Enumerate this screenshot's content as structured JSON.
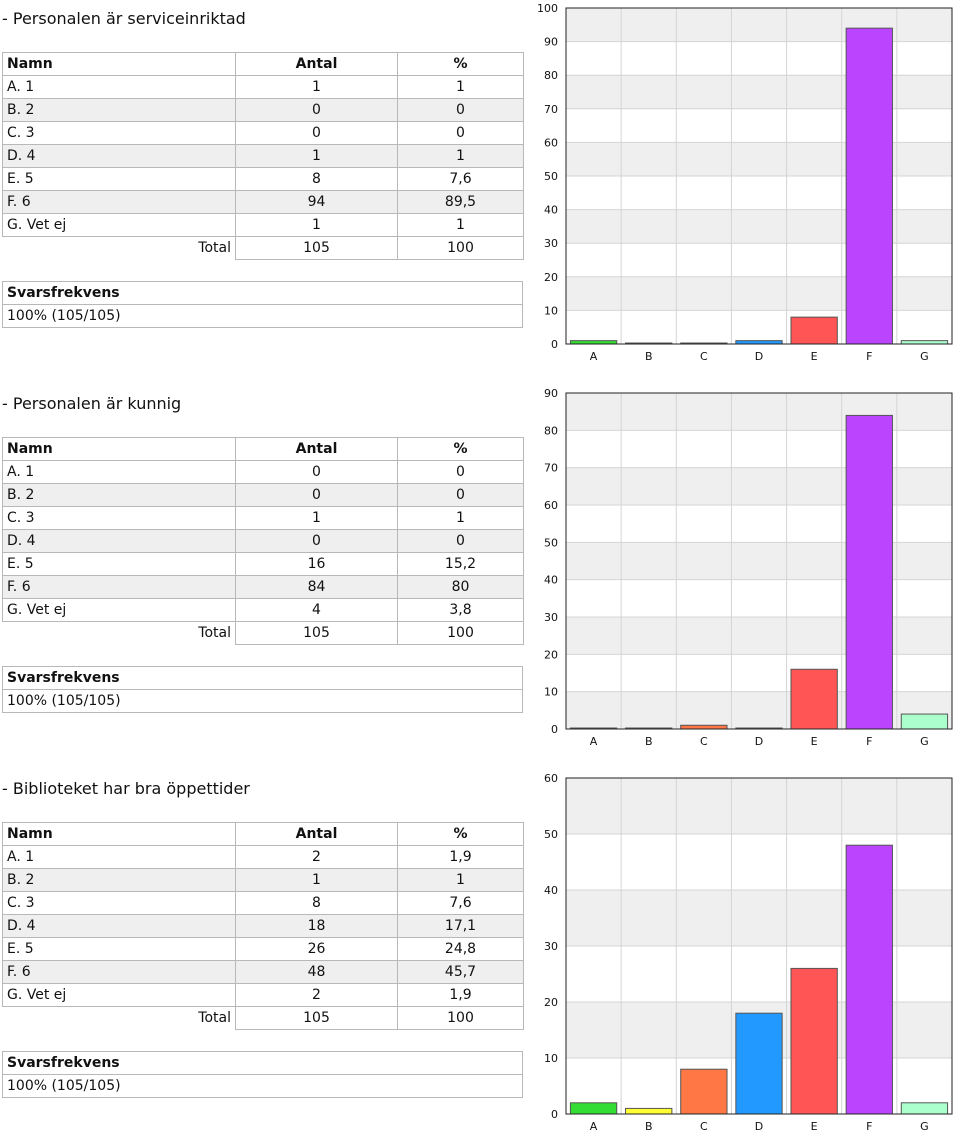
{
  "labels": {
    "col_name": "Namn",
    "col_count": "Antal",
    "col_pct": "%",
    "total": "Total",
    "response_rate": "Svarsfrekvens"
  },
  "sections": [
    {
      "title": "- Personalen är serviceinriktad",
      "rows": [
        {
          "name": "A. 1",
          "count": "1",
          "pct": "1"
        },
        {
          "name": "B. 2",
          "count": "0",
          "pct": "0"
        },
        {
          "name": "C. 3",
          "count": "0",
          "pct": "0"
        },
        {
          "name": "D. 4",
          "count": "1",
          "pct": "1"
        },
        {
          "name": "E. 5",
          "count": "8",
          "pct": "7,6"
        },
        {
          "name": "F. 6",
          "count": "94",
          "pct": "89,5"
        },
        {
          "name": "G. Vet ej",
          "count": "1",
          "pct": "1"
        }
      ],
      "total": {
        "count": "105",
        "pct": "100"
      },
      "response_rate": "100% (105/105)"
    },
    {
      "title": "- Personalen är kunnig",
      "rows": [
        {
          "name": "A. 1",
          "count": "0",
          "pct": "0"
        },
        {
          "name": "B. 2",
          "count": "0",
          "pct": "0"
        },
        {
          "name": "C. 3",
          "count": "1",
          "pct": "1"
        },
        {
          "name": "D. 4",
          "count": "0",
          "pct": "0"
        },
        {
          "name": "E. 5",
          "count": "16",
          "pct": "15,2"
        },
        {
          "name": "F. 6",
          "count": "84",
          "pct": "80"
        },
        {
          "name": "G. Vet ej",
          "count": "4",
          "pct": "3,8"
        }
      ],
      "total": {
        "count": "105",
        "pct": "100"
      },
      "response_rate": "100% (105/105)"
    },
    {
      "title": "- Biblioteket har bra öppettider",
      "rows": [
        {
          "name": "A. 1",
          "count": "2",
          "pct": "1,9"
        },
        {
          "name": "B. 2",
          "count": "1",
          "pct": "1"
        },
        {
          "name": "C. 3",
          "count": "8",
          "pct": "7,6"
        },
        {
          "name": "D. 4",
          "count": "18",
          "pct": "17,1"
        },
        {
          "name": "E. 5",
          "count": "26",
          "pct": "24,8"
        },
        {
          "name": "F. 6",
          "count": "48",
          "pct": "45,7"
        },
        {
          "name": "G. Vet ej",
          "count": "2",
          "pct": "1,9"
        }
      ],
      "total": {
        "count": "105",
        "pct": "100"
      },
      "response_rate": "100% (105/105)"
    }
  ],
  "chart_data": [
    {
      "type": "bar",
      "categories": [
        "A",
        "B",
        "C",
        "D",
        "E",
        "F",
        "G"
      ],
      "values": [
        1,
        0,
        0,
        1,
        8,
        94,
        1
      ],
      "ylim": [
        0,
        100
      ],
      "yticks": [
        0,
        10,
        20,
        30,
        40,
        50,
        60,
        70,
        80,
        90,
        100
      ],
      "grid": true,
      "colors": [
        "#33dd33",
        "#ffff33",
        "#ff7744",
        "#2299ff",
        "#ff5555",
        "#bb44ff",
        "#aaffcc"
      ]
    },
    {
      "type": "bar",
      "categories": [
        "A",
        "B",
        "C",
        "D",
        "E",
        "F",
        "G"
      ],
      "values": [
        0,
        0,
        1,
        0,
        16,
        84,
        4
      ],
      "ylim": [
        0,
        90
      ],
      "yticks": [
        0,
        10,
        20,
        30,
        40,
        50,
        60,
        70,
        80,
        90
      ],
      "grid": true,
      "colors": [
        "#33dd33",
        "#ffff33",
        "#ff7744",
        "#2299ff",
        "#ff5555",
        "#bb44ff",
        "#aaffcc"
      ]
    },
    {
      "type": "bar",
      "categories": [
        "A",
        "B",
        "C",
        "D",
        "E",
        "F",
        "G"
      ],
      "values": [
        2,
        1,
        8,
        18,
        26,
        48,
        2
      ],
      "ylim": [
        0,
        60
      ],
      "yticks": [
        0,
        10,
        20,
        30,
        40,
        50,
        60
      ],
      "grid": true,
      "colors": [
        "#33dd33",
        "#ffff33",
        "#ff7744",
        "#2299ff",
        "#ff5555",
        "#bb44ff",
        "#aaffcc"
      ]
    }
  ]
}
